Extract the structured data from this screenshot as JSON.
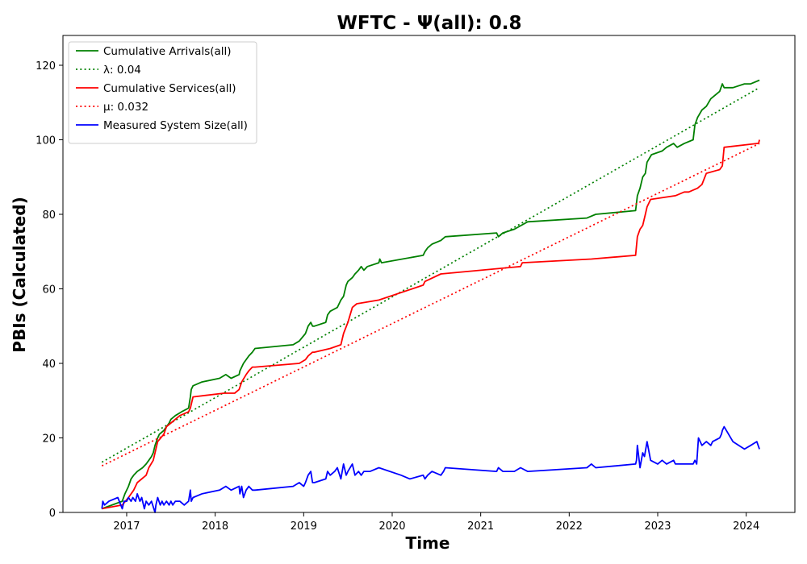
{
  "chart_data": {
    "type": "line",
    "title": "WFTC -  Ψ(all): 0.8",
    "xlabel": "Time",
    "ylabel": "PBIs (Calculated)",
    "xlim": [
      2016.28,
      2024.55
    ],
    "ylim": [
      0,
      128
    ],
    "x_ticks": [
      2017,
      2018,
      2019,
      2020,
      2021,
      2022,
      2023,
      2024
    ],
    "x_tick_labels": [
      "2017",
      "2018",
      "2019",
      "2020",
      "2021",
      "2022",
      "2023",
      "2024"
    ],
    "y_ticks": [
      0,
      20,
      40,
      60,
      80,
      100,
      120
    ],
    "y_tick_labels": [
      "0",
      "20",
      "40",
      "60",
      "80",
      "100",
      "120"
    ],
    "grid": false,
    "legend_position": "top-left",
    "series": [
      {
        "name": "Cumulative Arrivals(all)",
        "color": "#008000",
        "style": "solid",
        "x": [
          2016.72,
          2016.95,
          2016.98,
          2017.02,
          2017.05,
          2017.08,
          2017.12,
          2017.18,
          2017.22,
          2017.25,
          2017.28,
          2017.3,
          2017.32,
          2017.35,
          2017.37,
          2017.42,
          2017.45,
          2017.48,
          2017.5,
          2017.55,
          2017.62,
          2017.7,
          2017.72,
          2017.73,
          2017.75,
          2017.85,
          2018.05,
          2018.12,
          2018.18,
          2018.27,
          2018.28,
          2018.3,
          2018.32,
          2018.35,
          2018.38,
          2018.42,
          2018.45,
          2018.88,
          2018.95,
          2019.02,
          2019.05,
          2019.08,
          2019.1,
          2019.12,
          2019.25,
          2019.27,
          2019.3,
          2019.38,
          2019.42,
          2019.45,
          2019.48,
          2019.5,
          2019.55,
          2019.58,
          2019.62,
          2019.65,
          2019.68,
          2019.72,
          2019.85,
          2019.86,
          2019.88,
          2020.35,
          2020.37,
          2020.4,
          2020.45,
          2020.55,
          2020.6,
          2021.18,
          2021.2,
          2021.25,
          2021.38,
          2021.53,
          2022.2,
          2022.3,
          2022.75,
          2022.77,
          2022.8,
          2022.83,
          2022.86,
          2022.88,
          2022.93,
          2023.05,
          2023.1,
          2023.18,
          2023.22,
          2023.3,
          2023.4,
          2023.42,
          2023.45,
          2023.5,
          2023.55,
          2023.6,
          2023.7,
          2023.73,
          2023.75,
          2023.85,
          2023.98,
          2024.05,
          2024.15
        ],
        "y": [
          1,
          3,
          5,
          7,
          9,
          10,
          11,
          12,
          13,
          14,
          15,
          16,
          18,
          20,
          21,
          22,
          23,
          24,
          25,
          26,
          27,
          28,
          31,
          33,
          34,
          35,
          36,
          37,
          36,
          37,
          38,
          39,
          40,
          41,
          42,
          43,
          44,
          45,
          46,
          48,
          50,
          51,
          50,
          50,
          51,
          53,
          54,
          55,
          57,
          58,
          61,
          62,
          63,
          64,
          65,
          66,
          65,
          66,
          67,
          68,
          67,
          69,
          70,
          71,
          72,
          73,
          74,
          75,
          74,
          75,
          76,
          78,
          79,
          80,
          81,
          85,
          87,
          90,
          91,
          94,
          96,
          97,
          98,
          99,
          98,
          99,
          100,
          104,
          106,
          108,
          109,
          111,
          113,
          115,
          114,
          114,
          115,
          115,
          116
        ]
      },
      {
        "name": "λ: 0.04",
        "color": "#008000",
        "style": "dotted",
        "x": [
          2016.72,
          2024.15
        ],
        "y": [
          13.5,
          114
        ]
      },
      {
        "name": "Cumulative Services(all)",
        "color": "#ff0000",
        "style": "solid",
        "x": [
          2016.72,
          2016.95,
          2017.02,
          2017.08,
          2017.12,
          2017.22,
          2017.25,
          2017.3,
          2017.32,
          2017.35,
          2017.42,
          2017.45,
          2017.5,
          2017.6,
          2017.7,
          2017.72,
          2017.75,
          2018.1,
          2018.22,
          2018.27,
          2018.3,
          2018.35,
          2018.38,
          2018.42,
          2018.45,
          2018.95,
          2019.02,
          2019.05,
          2019.1,
          2019.12,
          2019.3,
          2019.42,
          2019.45,
          2019.5,
          2019.55,
          2019.6,
          2019.85,
          2020.35,
          2020.37,
          2020.55,
          2021.45,
          2021.47,
          2022.25,
          2022.75,
          2022.77,
          2022.8,
          2022.83,
          2022.86,
          2022.88,
          2022.92,
          2023.2,
          2023.3,
          2023.35,
          2023.45,
          2023.5,
          2023.55,
          2023.7,
          2023.73,
          2023.75,
          2024.12,
          2024.14,
          2024.15
        ],
        "y": [
          1,
          2,
          4,
          6,
          8,
          10,
          12,
          14,
          16,
          19,
          21,
          23,
          24,
          26,
          27,
          28,
          31,
          32,
          32,
          33,
          35,
          37,
          38,
          39,
          39,
          40,
          41,
          42,
          43,
          43,
          44,
          45,
          48,
          51,
          55,
          56,
          57,
          61,
          62,
          64,
          66,
          67,
          68,
          69,
          74,
          76,
          77,
          80,
          82,
          84,
          85,
          86,
          86,
          87,
          88,
          91,
          92,
          93,
          98,
          99,
          99,
          100
        ]
      },
      {
        "name": "μ: 0.032",
        "color": "#ff0000",
        "style": "dotted",
        "x": [
          2016.72,
          2024.15
        ],
        "y": [
          12.5,
          99
        ]
      },
      {
        "name": "Measured System Size(all)",
        "color": "#0000ff",
        "style": "solid",
        "x": [
          2016.72,
          2016.73,
          2016.75,
          2016.8,
          2016.9,
          2016.95,
          2016.97,
          2017.0,
          2017.02,
          2017.05,
          2017.07,
          2017.1,
          2017.12,
          2017.15,
          2017.17,
          2017.2,
          2017.22,
          2017.25,
          2017.28,
          2017.32,
          2017.33,
          2017.35,
          2017.38,
          2017.4,
          2017.42,
          2017.45,
          2017.48,
          2017.5,
          2017.52,
          2017.55,
          2017.6,
          2017.65,
          2017.7,
          2017.72,
          2017.73,
          2017.75,
          2017.85,
          2018.05,
          2018.12,
          2018.18,
          2018.27,
          2018.28,
          2018.3,
          2018.32,
          2018.35,
          2018.38,
          2018.42,
          2018.45,
          2018.88,
          2018.95,
          2019.0,
          2019.02,
          2019.05,
          2019.08,
          2019.1,
          2019.12,
          2019.25,
          2019.27,
          2019.3,
          2019.35,
          2019.38,
          2019.42,
          2019.45,
          2019.48,
          2019.5,
          2019.55,
          2019.58,
          2019.62,
          2019.65,
          2019.68,
          2019.75,
          2019.85,
          2020.1,
          2020.2,
          2020.35,
          2020.37,
          2020.4,
          2020.45,
          2020.55,
          2020.58,
          2020.6,
          2021.18,
          2021.2,
          2021.25,
          2021.38,
          2021.45,
          2021.53,
          2022.2,
          2022.25,
          2022.3,
          2022.75,
          2022.76,
          2022.77,
          2022.8,
          2022.83,
          2022.85,
          2022.88,
          2022.92,
          2023.0,
          2023.05,
          2023.1,
          2023.18,
          2023.2,
          2023.3,
          2023.38,
          2023.4,
          2023.42,
          2023.44,
          2023.46,
          2023.5,
          2023.55,
          2023.6,
          2023.62,
          2023.7,
          2023.72,
          2023.73,
          2023.75,
          2023.85,
          2023.98,
          2024.05,
          2024.12,
          2024.15
        ],
        "y": [
          1,
          3,
          2,
          3,
          4,
          1,
          3,
          3,
          4,
          3,
          4,
          3,
          5,
          3,
          4,
          1,
          3,
          2,
          3,
          0,
          2,
          4,
          2,
          3,
          2,
          3,
          2,
          3,
          2,
          3,
          3,
          2,
          3,
          6,
          3,
          4,
          5,
          6,
          7,
          6,
          7,
          5,
          7,
          4,
          6,
          7,
          6,
          6,
          7,
          8,
          7,
          8,
          10,
          11,
          8,
          8,
          9,
          11,
          10,
          11,
          12,
          9,
          13,
          10,
          11,
          13,
          10,
          11,
          10,
          11,
          11,
          12,
          10,
          9,
          10,
          9,
          10,
          11,
          10,
          11,
          12,
          11,
          12,
          11,
          11,
          12,
          11,
          12,
          13,
          12,
          13,
          14,
          18,
          12,
          16,
          15,
          19,
          14,
          13,
          14,
          13,
          14,
          13,
          13,
          13,
          13,
          14,
          13,
          20,
          18,
          19,
          18,
          19,
          20,
          21,
          22,
          23,
          19,
          17,
          18,
          19,
          17
        ]
      }
    ]
  }
}
